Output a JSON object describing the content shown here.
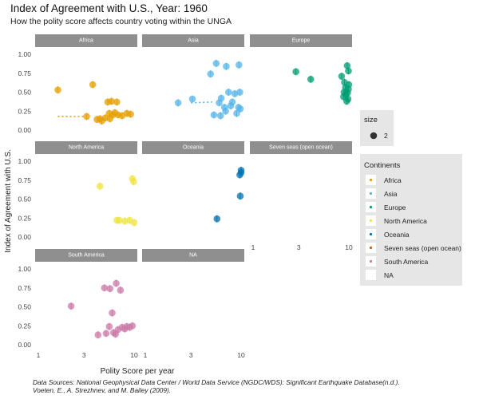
{
  "title": "Index of Agreement with U.S., Year: 1960",
  "subtitle": "How the polity score affects country voting within the UNGA",
  "caption_lines": [
    "Data Sources: National Geophysical Data Center / World Data Service (NGDC/WDS): Significant Earthquake Database(n.d.).",
    "Voeten, E., A. Strezhnev, and M. Bailey (2009)."
  ],
  "chart_data": {
    "type": "scatter",
    "xlabel": "Polity Score per year",
    "ylabel": "Index of Agreement with U.S.",
    "x_scale": "log10",
    "xlim": [
      1,
      10
    ],
    "ylim": [
      0,
      1
    ],
    "x_ticks": [
      1,
      3,
      10
    ],
    "x_tick_labels": [
      "1",
      "3",
      "10"
    ],
    "y_ticks": [
      0,
      0.25,
      0.5,
      0.75,
      1
    ],
    "y_tick_labels": [
      "0.00",
      "0.25",
      "0.50",
      "0.75",
      "1.00"
    ],
    "grid": false,
    "facets": [
      "Africa",
      "Asia",
      "Europe",
      "North America",
      "Oceania",
      "Seven seas (open ocean)",
      "South America",
      "NA"
    ],
    "series": [
      {
        "name": "Africa",
        "color": "#E69F00",
        "points": [
          [
            1.6,
            0.53
          ],
          [
            3.7,
            0.6
          ],
          [
            5.8,
            0.38
          ],
          [
            5.3,
            0.37
          ],
          [
            6.6,
            0.37
          ],
          [
            3.2,
            0.18
          ],
          [
            4.4,
            0.15
          ],
          [
            5.0,
            0.16
          ],
          [
            5.5,
            0.22
          ],
          [
            6.0,
            0.2
          ],
          [
            6.8,
            0.2
          ],
          [
            7.5,
            0.19
          ],
          [
            8.4,
            0.22
          ],
          [
            9.2,
            0.21
          ],
          [
            4.1,
            0.14
          ],
          [
            4.6,
            0.12
          ],
          [
            5.6,
            0.15
          ],
          [
            6.3,
            0.23
          ]
        ],
        "trend": [
          [
            1.6,
            0.18
          ],
          [
            3.0,
            0.18
          ]
        ]
      },
      {
        "name": "Asia",
        "color": "#56B4E9",
        "points": [
          [
            2.2,
            0.36
          ],
          [
            3.1,
            0.41
          ],
          [
            4.8,
            0.74
          ],
          [
            5.5,
            0.88
          ],
          [
            7.0,
            0.84
          ],
          [
            9.5,
            0.86
          ],
          [
            6.2,
            0.42
          ],
          [
            7.4,
            0.5
          ],
          [
            8.6,
            0.48
          ],
          [
            9.7,
            0.5
          ],
          [
            5.9,
            0.36
          ],
          [
            6.7,
            0.3
          ],
          [
            7.8,
            0.32
          ],
          [
            9.4,
            0.3
          ],
          [
            5.2,
            0.2
          ],
          [
            6.1,
            0.19
          ],
          [
            6.9,
            0.25
          ],
          [
            8.1,
            0.37
          ],
          [
            9.0,
            0.22
          ],
          [
            9.8,
            0.28
          ]
        ],
        "trend": [
          [
            3.0,
            0.36
          ],
          [
            5.0,
            0.37
          ]
        ]
      },
      {
        "name": "Europe",
        "color": "#009E73",
        "points": [
          [
            2.8,
            0.77
          ],
          [
            4.0,
            0.67
          ],
          [
            8.4,
            0.71
          ],
          [
            9.0,
            0.63
          ],
          [
            9.6,
            0.85
          ],
          [
            9.9,
            0.78
          ],
          [
            9.2,
            0.56
          ],
          [
            9.7,
            0.49
          ],
          [
            8.8,
            0.44
          ],
          [
            9.8,
            0.41
          ],
          [
            9.5,
            0.38
          ],
          [
            10.0,
            0.6
          ],
          [
            9.3,
            0.47
          ],
          [
            9.9,
            0.54
          ],
          [
            8.9,
            0.5
          ]
        ]
      },
      {
        "name": "North America",
        "color": "#F0E442",
        "points": [
          [
            4.4,
            0.67
          ],
          [
            9.6,
            0.77
          ],
          [
            9.9,
            0.73
          ],
          [
            6.6,
            0.22
          ],
          [
            7.0,
            0.22
          ],
          [
            8.0,
            0.21
          ],
          [
            9.0,
            0.22
          ],
          [
            10.0,
            0.19
          ]
        ]
      },
      {
        "name": "Oceania",
        "color": "#0072B2",
        "points": [
          [
            5.6,
            0.24
          ],
          [
            9.8,
            0.54
          ],
          [
            10.0,
            0.85
          ],
          [
            10.0,
            0.88
          ],
          [
            9.7,
            0.82
          ]
        ]
      },
      {
        "name": "Seven seas (open ocean)",
        "color": "#D55E00",
        "points": []
      },
      {
        "name": "South America",
        "color": "#CC79A7",
        "points": [
          [
            2.2,
            0.51
          ],
          [
            4.9,
            0.75
          ],
          [
            5.6,
            0.74
          ],
          [
            6.5,
            0.81
          ],
          [
            7.2,
            0.72
          ],
          [
            5.9,
            0.42
          ],
          [
            4.2,
            0.13
          ],
          [
            5.1,
            0.15
          ],
          [
            6.1,
            0.16
          ],
          [
            6.8,
            0.2
          ],
          [
            7.5,
            0.23
          ],
          [
            8.4,
            0.24
          ],
          [
            9.6,
            0.25
          ],
          [
            5.5,
            0.24
          ],
          [
            9.0,
            0.23
          ],
          [
            8.0,
            0.21
          ],
          [
            6.4,
            0.14
          ]
        ]
      },
      {
        "name": "NA",
        "color": "#ffffff",
        "points": []
      }
    ],
    "legend": {
      "position": "right",
      "size_title": "size",
      "size_value": "2",
      "color_title": "Continents",
      "entries": [
        "Africa",
        "Asia",
        "Europe",
        "North America",
        "Oceania",
        "Seven seas (open ocean)",
        "South America",
        "NA"
      ]
    }
  }
}
